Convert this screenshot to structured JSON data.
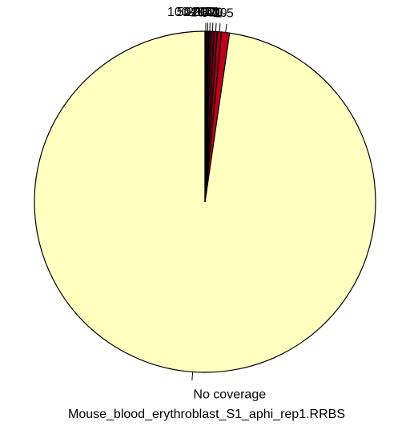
{
  "chart_data": {
    "type": "pie",
    "title": "Mouse_blood_erythroblast_S1_aphi_rep1.RRBS",
    "slice_order": "clockwise from 12 o'clock",
    "slices": [
      {
        "label": "No coverage",
        "value": 97.7,
        "color": "#FFFFC0"
      },
      {
        "label": "1-5",
        "value": 0.75,
        "color": "#C0001A"
      },
      {
        "label": "5-10",
        "value": 0.4,
        "color": "#A0001A"
      },
      {
        "label": "10-20",
        "value": 0.3,
        "color": "#80001A"
      },
      {
        "label": "20-50",
        "value": 0.3,
        "color": "#60001A"
      },
      {
        "label": "50-100",
        "value": 0.2,
        "color": "#40001A"
      },
      {
        "label": "100-200",
        "value": 0.2,
        "color": "#20001A"
      },
      {
        "label": ">200",
        "value": 0.15,
        "color": "#10000D"
      }
    ]
  }
}
